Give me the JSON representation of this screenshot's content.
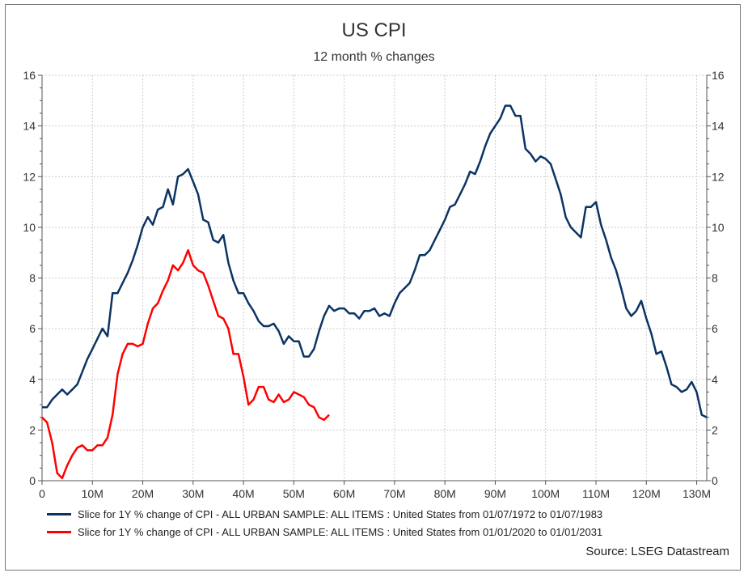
{
  "chart_data": {
    "type": "line",
    "title": "US CPI",
    "subtitle": "12 month % changes",
    "xlabel": "",
    "ylabel": "",
    "xlim": [
      0,
      132
    ],
    "ylim": [
      0,
      16
    ],
    "grid": true,
    "legend_position": "bottom",
    "x_ticks": [
      "0",
      "10M",
      "20M",
      "30M",
      "40M",
      "50M",
      "60M",
      "70M",
      "80M",
      "90M",
      "100M",
      "110M",
      "120M",
      "130M"
    ],
    "y_ticks": [
      "0",
      "2",
      "4",
      "6",
      "8",
      "10",
      "12",
      "14",
      "16"
    ],
    "series": [
      {
        "name": "Slice for 1Y % change of CPI - ALL URBAN SAMPLE: ALL ITEMS : United States from 01/07/1972 to 01/07/1983",
        "color": "#0b3463",
        "values": [
          2.9,
          2.9,
          3.2,
          3.4,
          3.6,
          3.4,
          3.6,
          3.8,
          4.3,
          4.8,
          5.2,
          5.6,
          6.0,
          5.7,
          7.4,
          7.4,
          7.8,
          8.2,
          8.7,
          9.3,
          10.0,
          10.4,
          10.1,
          10.7,
          10.8,
          11.5,
          10.9,
          12.0,
          12.1,
          12.3,
          11.8,
          11.3,
          10.3,
          10.2,
          9.5,
          9.4,
          9.7,
          8.6,
          7.9,
          7.4,
          7.4,
          7.0,
          6.7,
          6.3,
          6.1,
          6.1,
          6.2,
          5.9,
          5.4,
          5.7,
          5.5,
          5.5,
          4.9,
          4.9,
          5.2,
          5.9,
          6.5,
          6.9,
          6.7,
          6.8,
          6.8,
          6.6,
          6.6,
          6.4,
          6.7,
          6.7,
          6.8,
          6.5,
          6.6,
          6.5,
          7.0,
          7.4,
          7.6,
          7.8,
          8.3,
          8.9,
          8.9,
          9.1,
          9.5,
          9.9,
          10.3,
          10.8,
          10.9,
          11.3,
          11.7,
          12.2,
          12.1,
          12.6,
          13.2,
          13.7,
          14.0,
          14.3,
          14.8,
          14.8,
          14.4,
          14.4,
          13.1,
          12.9,
          12.6,
          12.8,
          12.7,
          12.5,
          11.9,
          11.3,
          10.4,
          10.0,
          9.8,
          9.6,
          10.8,
          10.8,
          11.0,
          10.1,
          9.5,
          8.8,
          8.3,
          7.6,
          6.8,
          6.5,
          6.7,
          7.1,
          6.4,
          5.8,
          5.0,
          5.1,
          4.5,
          3.8,
          3.7,
          3.5,
          3.6,
          3.9,
          3.5,
          2.6,
          2.5
        ]
      },
      {
        "name": "Slice for 1Y % change of CPI - ALL URBAN SAMPLE: ALL ITEMS : United States from 01/01/2020 to 01/01/2031",
        "color": "#ff0000",
        "values": [
          2.5,
          2.3,
          1.5,
          0.3,
          0.1,
          0.6,
          1.0,
          1.3,
          1.4,
          1.2,
          1.2,
          1.4,
          1.4,
          1.7,
          2.6,
          4.2,
          5.0,
          5.4,
          5.4,
          5.3,
          5.4,
          6.2,
          6.8,
          7.0,
          7.5,
          7.9,
          8.5,
          8.3,
          8.6,
          9.1,
          8.5,
          8.3,
          8.2,
          7.7,
          7.1,
          6.5,
          6.4,
          6.0,
          5.0,
          5.0,
          4.1,
          3.0,
          3.2,
          3.7,
          3.7,
          3.2,
          3.1,
          3.4,
          3.1,
          3.2,
          3.5,
          3.4,
          3.3,
          3.0,
          2.9,
          2.5,
          2.4,
          2.6
        ]
      }
    ],
    "source": "Source: LSEG Datastream"
  }
}
